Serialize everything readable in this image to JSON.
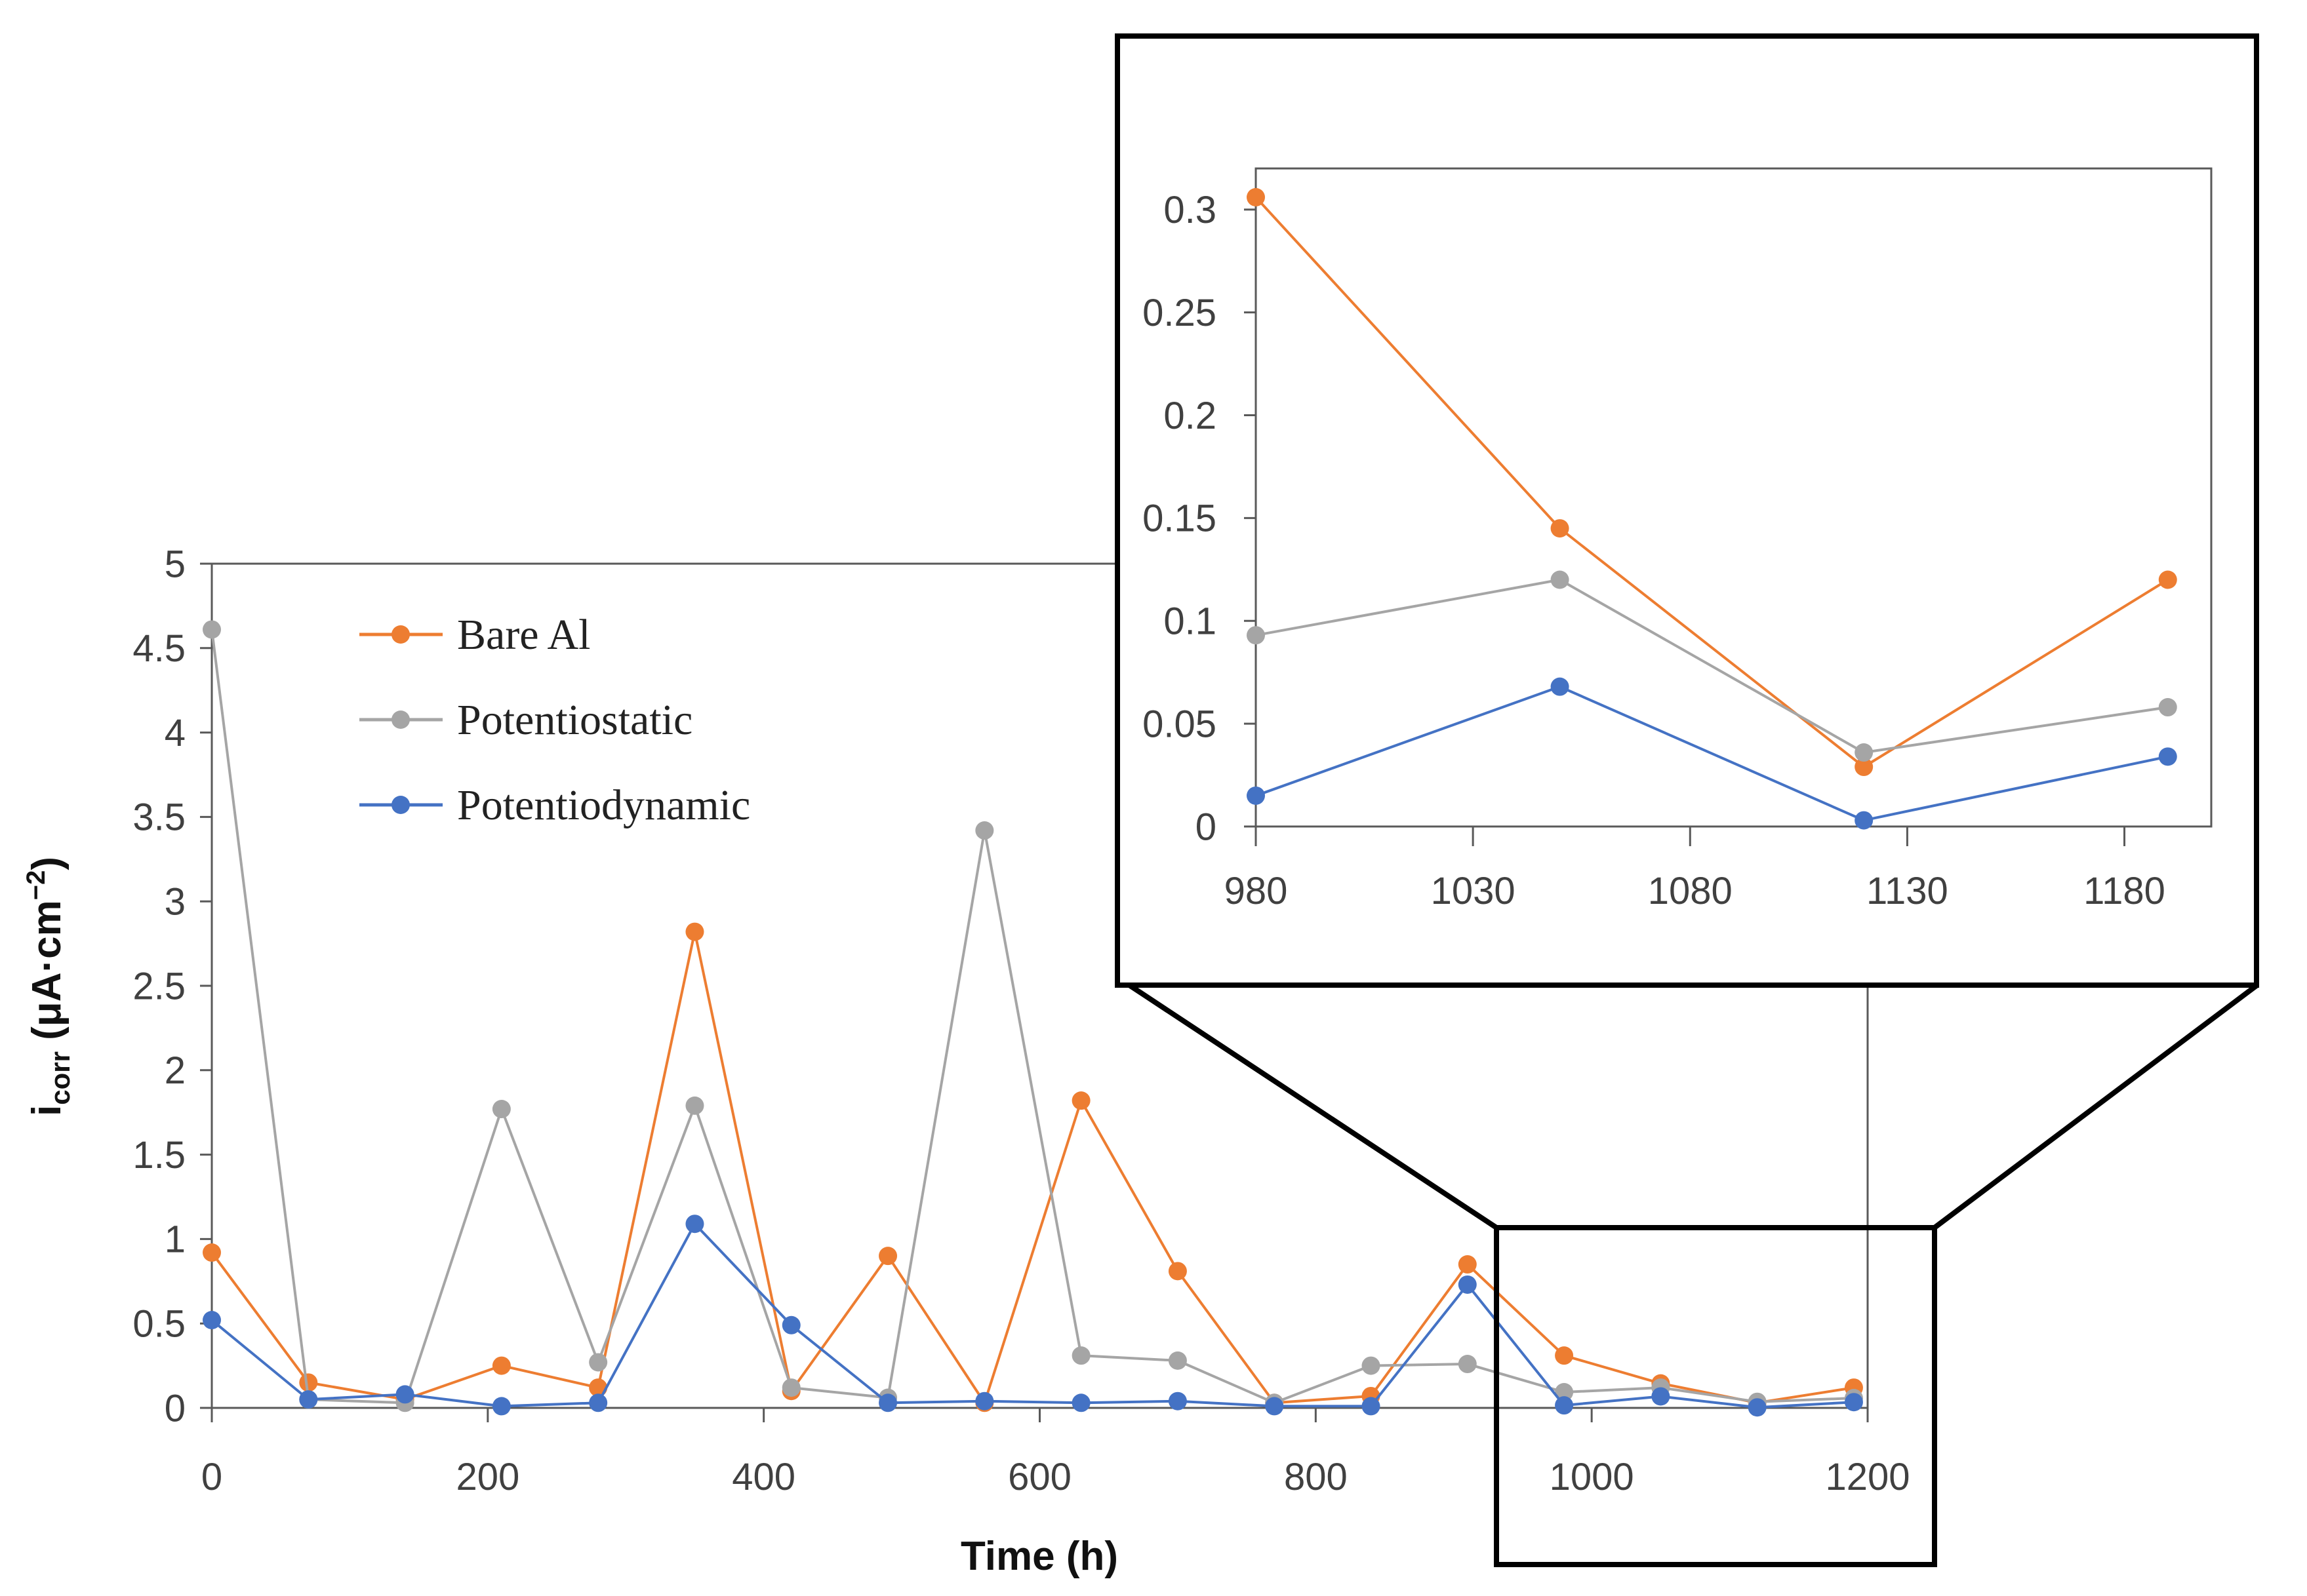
{
  "chart_data": [
    {
      "id": "main",
      "type": "line",
      "title": "",
      "xlabel": "Time (h)",
      "ylabel_main": "i",
      "ylabel_sub": "corr",
      "ylabel_unit": " (μA·cm",
      "ylabel_sup": "−2",
      "ylabel_close": ")",
      "xlim": [
        0,
        1200
      ],
      "ylim": [
        0,
        5
      ],
      "xticks": [
        0,
        200,
        400,
        600,
        800,
        1000,
        1200
      ],
      "xtick_labels": [
        "0",
        "200",
        "400",
        "600",
        "800",
        "1000",
        "1200"
      ],
      "yticks": [
        0,
        0.5,
        1,
        1.5,
        2,
        2.5,
        3,
        3.5,
        4,
        4.5,
        5
      ],
      "ytick_labels": [
        "0",
        "0.5",
        "1",
        "1.5",
        "2",
        "2.5",
        "3",
        "3.5",
        "4",
        "4.5",
        "5"
      ],
      "x": [
        0,
        70,
        140,
        210,
        280,
        350,
        420,
        490,
        560,
        630,
        700,
        770,
        840,
        910,
        980,
        1050,
        1120,
        1190
      ],
      "legend_position": "top-left",
      "series": [
        {
          "name": "Bare Al",
          "color": "#ED7D31",
          "values": [
            0.92,
            0.15,
            0.05,
            0.25,
            0.12,
            2.82,
            0.1,
            0.9,
            0.03,
            1.82,
            0.81,
            0.03,
            0.07,
            0.85,
            0.31,
            0.145,
            0.03,
            0.12
          ]
        },
        {
          "name": "Potentiostatic",
          "color": "#A5A5A5",
          "values": [
            4.61,
            0.05,
            0.03,
            1.77,
            0.27,
            1.79,
            0.12,
            0.06,
            3.42,
            0.31,
            0.28,
            0.03,
            0.25,
            0.26,
            0.093,
            0.12,
            0.036,
            0.058
          ]
        },
        {
          "name": "Potentiodynamic",
          "color": "#4472C4",
          "values": [
            0.52,
            0.05,
            0.08,
            0.01,
            0.03,
            1.09,
            0.49,
            0.03,
            0.04,
            0.03,
            0.04,
            0.01,
            0.01,
            0.73,
            0.015,
            0.068,
            0.003,
            0.034
          ]
        }
      ]
    },
    {
      "id": "inset",
      "type": "line",
      "title": "",
      "xlim": [
        980,
        1200
      ],
      "ylim": [
        0,
        0.32
      ],
      "xticks": [
        980,
        1030,
        1080,
        1130,
        1180
      ],
      "xtick_labels": [
        "980",
        "1030",
        "1080",
        "1130",
        "1180"
      ],
      "yticks": [
        0,
        0.05,
        0.1,
        0.15,
        0.2,
        0.25,
        0.3
      ],
      "ytick_labels": [
        "0",
        "0.05",
        "0.1",
        "0.15",
        "0.2",
        "0.25",
        "0.3"
      ],
      "x": [
        980,
        1050,
        1120,
        1190
      ],
      "series": [
        {
          "name": "Bare Al",
          "color": "#ED7D31",
          "values": [
            0.306,
            0.145,
            0.029,
            0.12
          ]
        },
        {
          "name": "Potentiostatic",
          "color": "#A5A5A5",
          "values": [
            0.093,
            0.12,
            0.036,
            0.058
          ]
        },
        {
          "name": "Potentiodynamic",
          "color": "#4472C4",
          "values": [
            0.015,
            0.068,
            0.003,
            0.034
          ]
        }
      ]
    }
  ]
}
